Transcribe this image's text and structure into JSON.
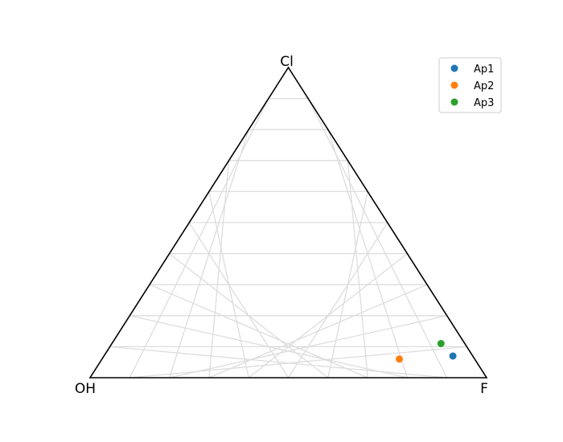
{
  "chart_data": {
    "type": "scatter",
    "subtype": "ternary",
    "title": "",
    "axes": {
      "top": "Cl",
      "left": "OH",
      "right": "F"
    },
    "grid": true,
    "grid_divisions": 10,
    "legend_position": "top-right",
    "series": [
      {
        "name": "Ap1",
        "color": "#1f77b4",
        "points": [
          {
            "F": 0.88,
            "Cl": 0.07,
            "OH": 0.05
          }
        ]
      },
      {
        "name": "Ap2",
        "color": "#ff7f0e",
        "points": [
          {
            "F": 0.75,
            "Cl": 0.06,
            "OH": 0.19
          }
        ]
      },
      {
        "name": "Ap3",
        "color": "#2ca02c",
        "points": [
          {
            "F": 0.83,
            "Cl": 0.11,
            "OH": 0.06
          }
        ]
      }
    ]
  }
}
